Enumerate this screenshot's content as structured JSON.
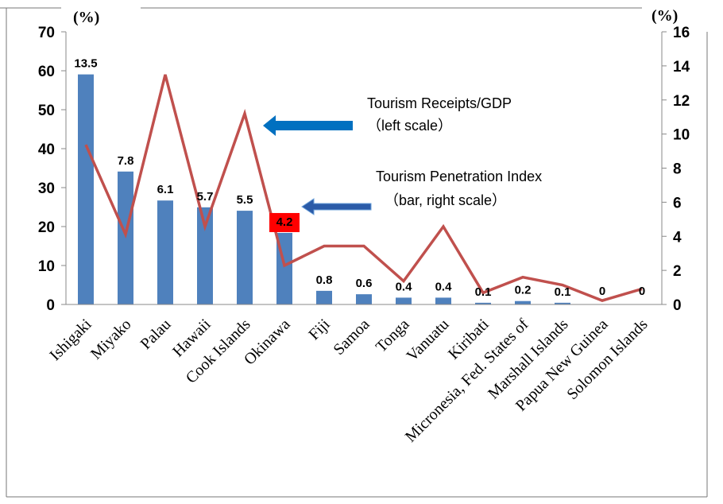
{
  "chart_data": {
    "type": "bar",
    "categories": [
      "Ishigaki",
      "Miyako",
      "Palau",
      "Hawaii",
      "Cook Islands",
      "Okinawa",
      "Fiji",
      "Samoa",
      "Tonga",
      "Vanuatu",
      "Kiribati",
      "Micronesia, Fed. States of",
      "Marshall Islands",
      "Papua New Guinea",
      "Solomon Islands"
    ],
    "series": [
      {
        "name": "Tourism Penetration Index (bar, right scale)",
        "type": "bar",
        "axis": "right",
        "values": [
          13.5,
          7.8,
          6.1,
          5.7,
          5.5,
          4.2,
          0.8,
          0.6,
          0.4,
          0.4,
          0.1,
          0.2,
          0.1,
          0,
          0
        ],
        "data_labels": [
          "13.5",
          "7.8",
          "6.1",
          "5.7",
          "5.5",
          "4.2",
          "0.8",
          "0.6",
          "0.4",
          "0.4",
          "0.1",
          "0.2",
          "0.1",
          "0",
          "0"
        ],
        "color": "#4f81bd"
      },
      {
        "name": "Tourism Receipts/GDP (left scale)",
        "type": "line",
        "axis": "left",
        "values": [
          41,
          18,
          59,
          20,
          49,
          10,
          15,
          15,
          6,
          20,
          3,
          7,
          5,
          1,
          4
        ],
        "color": "#c0504d"
      }
    ],
    "left_axis": {
      "unit": "(%)",
      "ylim": [
        0,
        70
      ],
      "ticks": [
        "0",
        "10",
        "20",
        "30",
        "40",
        "50",
        "60",
        "70"
      ]
    },
    "right_axis": {
      "unit": "(%)",
      "ylim": [
        0,
        16
      ],
      "ticks": [
        "0",
        "2",
        "4",
        "6",
        "8",
        "10",
        "12",
        "14",
        "16"
      ]
    },
    "highlight": {
      "category": "Okinawa",
      "color": "#ff0000"
    },
    "annotations": [
      {
        "line1": "Tourism Receipts/GDP",
        "line2": "（left scale）",
        "arrow_color": "#0070c0"
      },
      {
        "line1": "Tourism Penetration Index",
        "line2": "（bar,  right  scale）",
        "arrow_color": "#1f4e9c"
      }
    ],
    "legend": "none",
    "grid": false
  }
}
